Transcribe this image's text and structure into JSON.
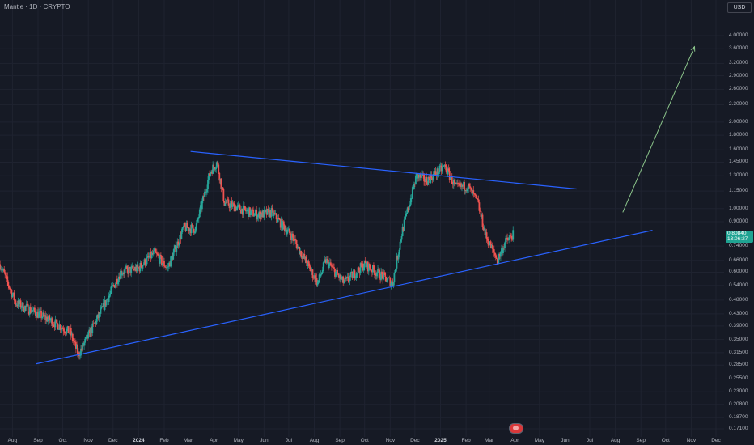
{
  "title": "Mantle · 1D · CRYPTO",
  "currency": "USD",
  "last_price": {
    "value": "0.80840",
    "countdown": "13:06:27"
  },
  "colors": {
    "background": "#161a25",
    "up": "#26a69a",
    "down": "#ef5350",
    "trendline": "#2962ff",
    "arrow": "#8bc48a",
    "grid": "#1f2330",
    "last_price_box": "#1fa392"
  },
  "chart_data": {
    "type": "candlestick",
    "y_scale": "log",
    "y_ticks": [
      "4.00000",
      "3.60000",
      "3.20000",
      "2.90000",
      "2.60000",
      "2.30000",
      "2.00000",
      "1.80000",
      "1.60000",
      "1.45000",
      "1.30000",
      "1.15000",
      "1.00000",
      "0.90000",
      "0.80840",
      "0.74000",
      "0.66000",
      "0.60000",
      "0.54000",
      "0.48000",
      "0.43000",
      "0.39000",
      "0.35000",
      "0.31500",
      "0.28500",
      "0.25500",
      "0.23000",
      "0.20800",
      "0.18700",
      "0.17100"
    ],
    "x_ticks": [
      "Aug",
      "Sep",
      "Oct",
      "Nov",
      "Dec",
      "2024",
      "Feb",
      "Mar",
      "Apr",
      "May",
      "Jun",
      "Jul",
      "Aug",
      "Sep",
      "Oct",
      "Nov",
      "Dec",
      "2025",
      "Feb",
      "Mar",
      "Apr",
      "May",
      "Jun",
      "Jul",
      "Aug",
      "Sep",
      "Oct",
      "Nov",
      "Dec"
    ],
    "anchors": [
      {
        "date": "2023-07-17",
        "close": 0.64
      },
      {
        "date": "2023-08-05",
        "close": 0.47
      },
      {
        "date": "2023-09-15",
        "close": 0.41
      },
      {
        "date": "2023-10-10",
        "close": 0.37
      },
      {
        "date": "2023-10-20",
        "close": 0.31
      },
      {
        "date": "2023-11-15",
        "close": 0.43
      },
      {
        "date": "2023-12-10",
        "close": 0.6
      },
      {
        "date": "2024-01-01",
        "close": 0.62
      },
      {
        "date": "2024-01-20",
        "close": 0.7
      },
      {
        "date": "2024-02-05",
        "close": 0.62
      },
      {
        "date": "2024-02-25",
        "close": 0.86
      },
      {
        "date": "2024-03-10",
        "close": 0.85
      },
      {
        "date": "2024-03-28",
        "close": 1.35
      },
      {
        "date": "2024-04-05",
        "close": 1.45
      },
      {
        "date": "2024-04-14",
        "close": 1.05
      },
      {
        "date": "2024-05-10",
        "close": 0.98
      },
      {
        "date": "2024-05-25",
        "close": 0.95
      },
      {
        "date": "2024-06-10",
        "close": 0.97
      },
      {
        "date": "2024-07-05",
        "close": 0.8
      },
      {
        "date": "2024-08-05",
        "close": 0.55
      },
      {
        "date": "2024-08-15",
        "close": 0.66
      },
      {
        "date": "2024-09-06",
        "close": 0.55
      },
      {
        "date": "2024-10-01",
        "close": 0.64
      },
      {
        "date": "2024-11-04",
        "close": 0.55
      },
      {
        "date": "2024-11-15",
        "close": 0.82
      },
      {
        "date": "2024-12-03",
        "close": 1.3
      },
      {
        "date": "2024-12-15",
        "close": 1.25
      },
      {
        "date": "2025-01-06",
        "close": 1.4
      },
      {
        "date": "2025-01-20",
        "close": 1.18
      },
      {
        "date": "2025-02-03",
        "close": 1.2
      },
      {
        "date": "2025-02-15",
        "close": 1.05
      },
      {
        "date": "2025-02-25",
        "close": 0.8
      },
      {
        "date": "2025-03-11",
        "close": 0.66
      },
      {
        "date": "2025-03-20",
        "close": 0.76
      },
      {
        "date": "2025-03-30",
        "close": 0.81
      }
    ],
    "drawings": [
      {
        "name": "upper-trendline",
        "from": {
          "date": "2024-03-04",
          "price": 1.58
        },
        "to": {
          "date": "2025-06-15",
          "price": 1.17
        }
      },
      {
        "name": "lower-trendline",
        "from": {
          "date": "2023-08-30",
          "price": 0.288
        },
        "to": {
          "date": "2025-09-15",
          "price": 0.84
        }
      },
      {
        "name": "target-arrow",
        "from": {
          "date": "2025-08-10",
          "price": 0.97
        },
        "to": {
          "date": "2025-11-05",
          "price": 3.66
        }
      }
    ]
  }
}
